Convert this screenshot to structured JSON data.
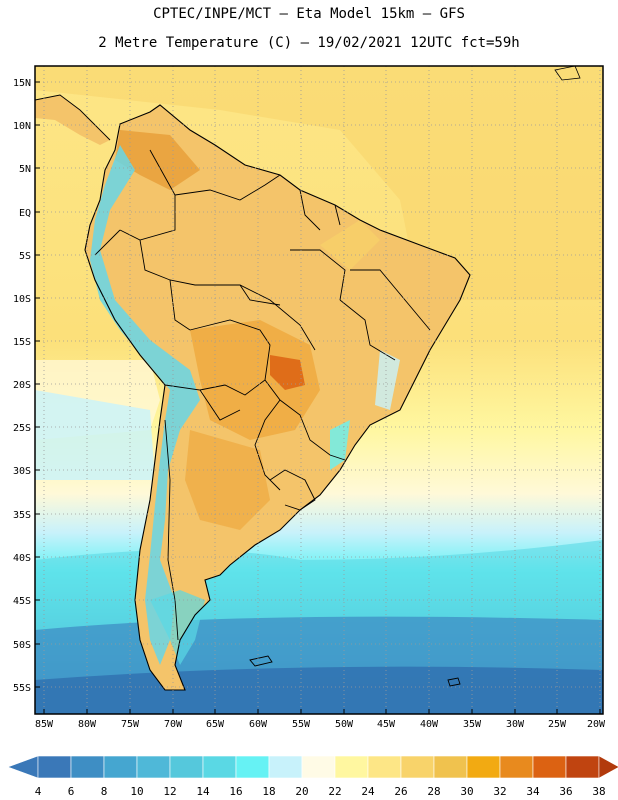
{
  "header": {
    "line1": "CPTEC/INPE/MCT –  Eta Model 15km – GFS",
    "line2": "2 Metre Temperature (C) – 19/02/2021 12UTC fct=59h"
  },
  "map": {
    "lat_labels": [
      "15N",
      "10N",
      "5N",
      "EQ",
      "5S",
      "10S",
      "15S",
      "20S",
      "25S",
      "30S",
      "35S",
      "40S",
      "45S",
      "50S",
      "55S"
    ],
    "lon_labels": [
      "85W",
      "80W",
      "75W",
      "70W",
      "65W",
      "60W",
      "55W",
      "50W",
      "45W",
      "40W",
      "35W",
      "30W",
      "25W",
      "20W"
    ]
  },
  "colorbar": {
    "labels": [
      "4",
      "6",
      "8",
      "10",
      "12",
      "14",
      "16",
      "18",
      "20",
      "22",
      "24",
      "26",
      "28",
      "30",
      "32",
      "34",
      "36",
      "38"
    ],
    "colors": [
      "#3a78b8",
      "#3e8ec4",
      "#45a6d0",
      "#4fb8d8",
      "#55c8dc",
      "#5ad8e4",
      "#66f2f4",
      "#c8f2fb",
      "#fffbe6",
      "#fff7a0",
      "#fde686",
      "#f8d36a",
      "#f0c24e",
      "#f2aa12",
      "#e88a1e",
      "#dc6212",
      "#c04410"
    ]
  },
  "colors": {
    "ocean_warm": "#fde686",
    "land_hot": "#f0b44a",
    "cold_pacific": "#2f6faf"
  }
}
